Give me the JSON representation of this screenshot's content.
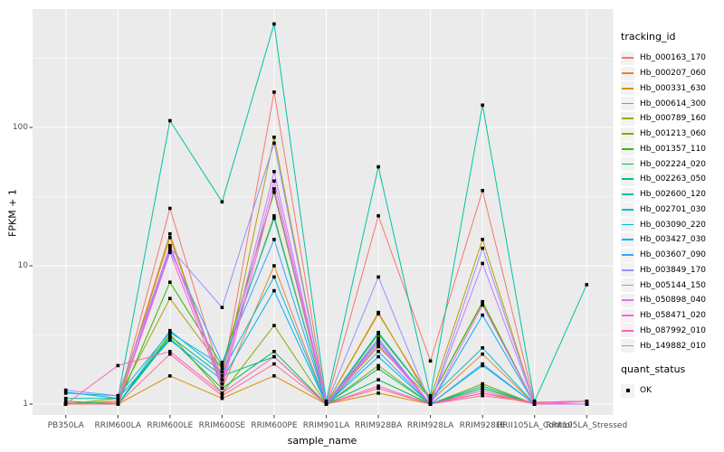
{
  "figure": {
    "panel_bg": "#EBEBEB",
    "grid_color": "#FFFFFF",
    "tick_mark_color": "#333333",
    "tick_label_color": "#4D4D4D",
    "point_color": "#000000",
    "legend_key_bg": "#F2F2F2"
  },
  "chart_data": {
    "type": "line",
    "title": "",
    "xlabel": "sample_name",
    "ylabel": "FPKM + 1",
    "y_scale": "log10",
    "y_ticks": [
      1,
      10,
      100
    ],
    "y_minor_ticks": [
      3.162,
      31.62,
      316.2
    ],
    "ylim": [
      0.93,
      720
    ],
    "grid": true,
    "categories": [
      "PB350LA",
      "RRIM600LA",
      "RRIM600LE",
      "RRIM600SE",
      "RRIM600PE",
      "RRIM901LA",
      "RRIM928BA",
      "RRIM928LA",
      "RRIM928LE",
      "RRII105LA_Control",
      "RRII105LA_Stressed"
    ],
    "legend": {
      "title": "tracking_id",
      "position": "right"
    },
    "legend2": {
      "title": "quant_status",
      "items": [
        {
          "label": "OK",
          "marker": "black-square"
        }
      ]
    },
    "series": [
      {
        "name": "Hb_000163_170",
        "color": "#F8766D",
        "values": [
          1.02,
          1.02,
          26,
          1.5,
          180,
          1.0,
          23,
          2.05,
          35,
          1.02,
          1.0
        ]
      },
      {
        "name": "Hb_000207_060",
        "color": "#EA8331",
        "values": [
          1.0,
          1.05,
          17,
          1.3,
          10,
          1.0,
          4.6,
          1.05,
          2.3,
          1.0,
          1.0
        ]
      },
      {
        "name": "Hb_000331_630",
        "color": "#D89000",
        "values": [
          1.0,
          1.0,
          1.6,
          1.1,
          1.6,
          1.0,
          1.2,
          1.0,
          1.2,
          1.0,
          1.0
        ]
      },
      {
        "name": "Hb_000614_300",
        "color": "#C09B00",
        "values": [
          1.0,
          1.05,
          16,
          1.4,
          85,
          1.0,
          4.5,
          1.1,
          15.5,
          1.0,
          1.0
        ]
      },
      {
        "name": "Hb_000789_160",
        "color": "#A3A500",
        "values": [
          1.0,
          1.1,
          5.8,
          1.8,
          23,
          1.0,
          2.6,
          1.1,
          5.5,
          1.0,
          1.0
        ]
      },
      {
        "name": "Hb_001213_060",
        "color": "#7CAE00",
        "values": [
          1.0,
          1.0,
          3.2,
          1.2,
          3.7,
          1.0,
          1.9,
          1.0,
          1.4,
          1.0,
          1.0
        ]
      },
      {
        "name": "Hb_001357_110",
        "color": "#39B600",
        "values": [
          1.0,
          1.0,
          7.6,
          1.9,
          34,
          1.0,
          3.2,
          1.1,
          5.4,
          1.0,
          1.0
        ]
      },
      {
        "name": "Hb_002224_020",
        "color": "#00BB4E",
        "values": [
          1.0,
          1.0,
          3.0,
          1.3,
          2.4,
          1.0,
          1.5,
          1.0,
          1.3,
          1.0,
          1.0
        ]
      },
      {
        "name": "Hb_002263_050",
        "color": "#00BF7D",
        "values": [
          1.05,
          1.0,
          3.1,
          1.6,
          2.2,
          1.0,
          1.8,
          1.0,
          1.35,
          1.0,
          1.0
        ]
      },
      {
        "name": "Hb_002600_120",
        "color": "#00C1A3",
        "values": [
          1.1,
          1.1,
          112,
          29,
          560,
          1.05,
          52,
          1.15,
          145,
          1.05,
          7.3
        ]
      },
      {
        "name": "Hb_002701_030",
        "color": "#00BFC4",
        "values": [
          1.2,
          1.15,
          3.3,
          1.9,
          22,
          1.0,
          3.3,
          1.1,
          2.55,
          1.0,
          1.0
        ]
      },
      {
        "name": "Hb_003090_220",
        "color": "#00BAE0",
        "values": [
          1.0,
          1.0,
          3.4,
          1.7,
          8.3,
          1.0,
          2.9,
          1.0,
          1.9,
          1.0,
          1.0
        ]
      },
      {
        "name": "Hb_003427_030",
        "color": "#00B0F6",
        "values": [
          1.22,
          1.1,
          2.9,
          1.5,
          6.6,
          1.0,
          2.2,
          1.0,
          4.4,
          1.0,
          1.0
        ]
      },
      {
        "name": "Hb_003607_090",
        "color": "#35A2FF",
        "values": [
          1.0,
          1.0,
          13,
          2.0,
          15.5,
          1.0,
          2.4,
          1.0,
          1.95,
          1.0,
          1.0
        ]
      },
      {
        "name": "Hb_003849_170",
        "color": "#9590FF",
        "values": [
          1.26,
          1.15,
          13.5,
          5.0,
          77,
          1.0,
          8.3,
          1.0,
          13.4,
          1.0,
          1.0
        ]
      },
      {
        "name": "Hb_005144_150",
        "color": "#C77CFF",
        "values": [
          1.0,
          1.0,
          14,
          1.5,
          48,
          1.0,
          3.0,
          1.0,
          10.4,
          1.0,
          1.0
        ]
      },
      {
        "name": "Hb_050898_040",
        "color": "#E76BF3",
        "values": [
          1.0,
          1.0,
          13.8,
          1.4,
          41,
          1.0,
          2.8,
          1.0,
          5.2,
          1.0,
          1.05
        ]
      },
      {
        "name": "Hb_058471_020",
        "color": "#FA62DB",
        "values": [
          1.0,
          1.0,
          12.5,
          1.3,
          36,
          1.0,
          2.7,
          1.0,
          1.25,
          1.0,
          1.05
        ]
      },
      {
        "name": "Hb_087992_010",
        "color": "#FF62BC",
        "values": [
          1.0,
          1.9,
          2.4,
          1.2,
          2.2,
          1.0,
          1.35,
          1.0,
          1.2,
          1.03,
          1.05
        ]
      },
      {
        "name": "Hb_149882_010",
        "color": "#FF6A98",
        "values": [
          1.0,
          1.0,
          2.3,
          1.15,
          1.95,
          1.0,
          1.3,
          1.0,
          1.15,
          1.03,
          1.05
        ]
      }
    ]
  }
}
